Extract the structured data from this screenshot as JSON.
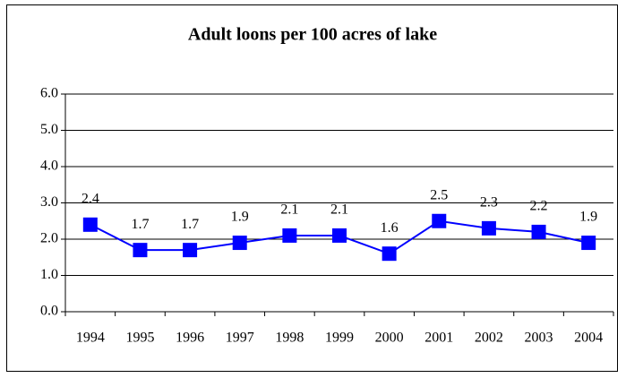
{
  "chart_data": {
    "type": "line",
    "title": "Adult loons per 100 acres of lake",
    "categories": [
      "1994",
      "1995",
      "1996",
      "1997",
      "1998",
      "1999",
      "2000",
      "2001",
      "2002",
      "2003",
      "2004"
    ],
    "series": [
      {
        "color": "#0000ff",
        "values": [
          2.4,
          1.7,
          1.7,
          1.9,
          2.1,
          2.1,
          1.6,
          2.5,
          2.3,
          2.2,
          1.9
        ]
      }
    ],
    "ylim": [
      0,
      6
    ],
    "yticks": [
      {
        "value": 0,
        "label": "0.0"
      },
      {
        "value": 1,
        "label": "1.0"
      },
      {
        "value": 2,
        "label": "2.0"
      },
      {
        "value": 3,
        "label": "3.0"
      },
      {
        "value": 4,
        "label": "4.0"
      },
      {
        "value": 5,
        "label": "5.0"
      },
      {
        "value": 6,
        "label": "6.0"
      }
    ],
    "grid": true
  }
}
